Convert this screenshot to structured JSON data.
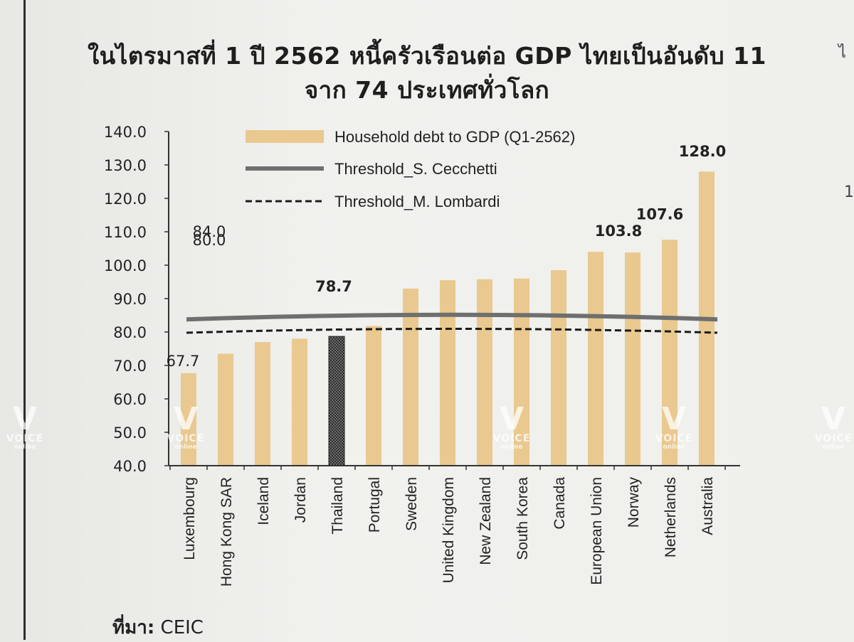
{
  "title_line1": "ในไตรมาสที่ 1 ปี 2562 หนี้ครัวเรือนต่อ GDP ไทยเป็นอันดับ 11",
  "title_line2": "จาก 74 ประเทศทั่วโลก",
  "source_label": "ที่มา:",
  "source_value": "CEIC",
  "margin_text": [
    "ไ",
    "1"
  ],
  "watermark": {
    "mark": "V",
    "text": "VOICE",
    "sub": "online"
  },
  "colors": {
    "bar": "#e9c98f",
    "highlight": "#3a3a3a",
    "cecchetti": "#6f6f6f",
    "lombardi": "#1b1b1b"
  },
  "chart_data": {
    "type": "bar",
    "categories": [
      "Luxembourg",
      "Hong Kong SAR",
      "Iceland",
      "Jordan",
      "Thailand",
      "Portugal",
      "Sweden",
      "United Kingdom",
      "New Zealand",
      "South Korea",
      "Canada",
      "European Union",
      "Norway",
      "Netherlands",
      "Australia"
    ],
    "series": [
      {
        "name": "Household debt to GDP (Q1-2562)",
        "values": [
          67.7,
          73.5,
          77,
          78,
          78.7,
          81.8,
          93,
          95.5,
          95.8,
          96,
          98.5,
          104,
          103.8,
          107.6,
          128.0
        ]
      }
    ],
    "highlight": "Thailand",
    "reference_lines": [
      {
        "name": "Threshold_S. Cecchetti",
        "value": 84.0,
        "style": "solid"
      },
      {
        "name": "Threshold_M. Lombardi",
        "value": 80.0,
        "style": "dashed"
      }
    ],
    "annotations": [
      {
        "text": "67.7",
        "category": "Luxembourg"
      },
      {
        "text": "78.7",
        "category": "Thailand"
      },
      {
        "text": "103.8",
        "category": "Norway"
      },
      {
        "text": "107.6",
        "category": "Netherlands"
      },
      {
        "text": "128.0",
        "category": "Australia"
      },
      {
        "text": "84.0",
        "line": "Threshold_S. Cecchetti"
      },
      {
        "text": "80.0",
        "line": "Threshold_M. Lombardi"
      }
    ],
    "yticks": [
      "140.0",
      "130.0",
      "120.0",
      "110.0",
      "100.0",
      "90.0",
      "80.0",
      "70.0",
      "60.0",
      "50.0",
      "40.0"
    ],
    "ylim": [
      40,
      140
    ],
    "xlabel": "",
    "ylabel": "",
    "legend_position": "top",
    "grid": false
  }
}
